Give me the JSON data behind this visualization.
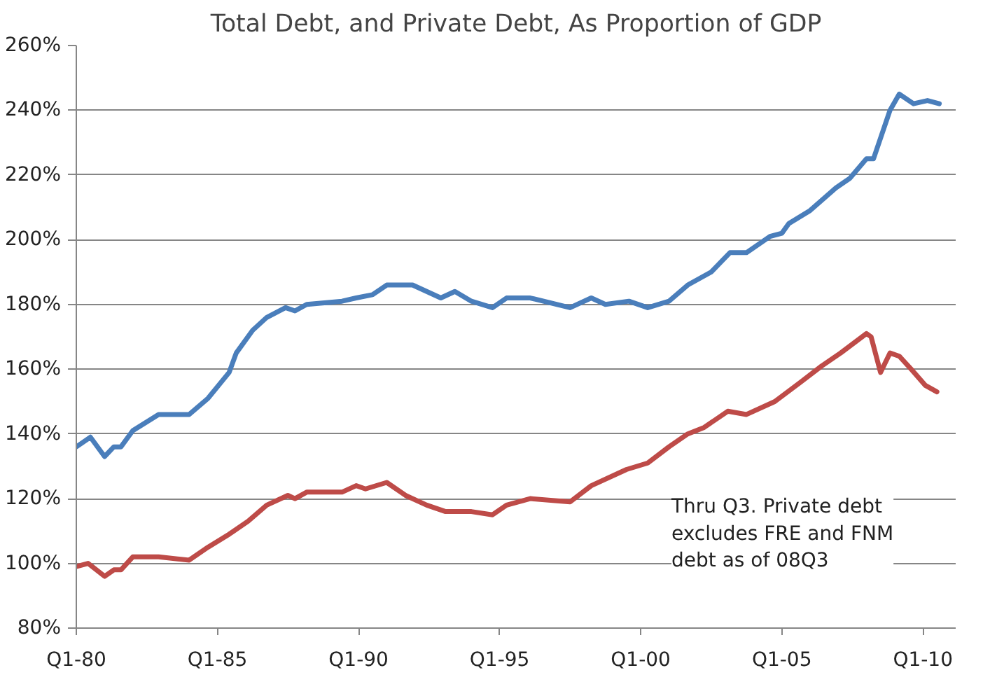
{
  "chart_data": {
    "type": "line",
    "title": "Total Debt, and Private Debt, As Proportion of GDP",
    "xlim": [
      "1980-01",
      "2011-03"
    ],
    "xticks": [
      {
        "value": "1980-01",
        "label": "Q1-80"
      },
      {
        "value": "1985-01",
        "label": "Q1-85"
      },
      {
        "value": "1990-01",
        "label": "Q1-90"
      },
      {
        "value": "1995-01",
        "label": "Q1-95"
      },
      {
        "value": "2000-01",
        "label": "Q1-00"
      },
      {
        "value": "2005-01",
        "label": "Q1-05"
      },
      {
        "value": "2010-01",
        "label": "Q1-10"
      }
    ],
    "ylim": [
      80,
      260
    ],
    "yticks": [
      {
        "value": 80,
        "label": "80%"
      },
      {
        "value": 100,
        "label": "100%"
      },
      {
        "value": 120,
        "label": "120%"
      },
      {
        "value": 140,
        "label": "140%"
      },
      {
        "value": 160,
        "label": "160%"
      },
      {
        "value": 180,
        "label": "180%"
      },
      {
        "value": 200,
        "label": "200%"
      },
      {
        "value": 220,
        "label": "220%"
      },
      {
        "value": 240,
        "label": "240%"
      },
      {
        "value": 260,
        "label": "260%"
      }
    ],
    "grid": "y",
    "line_style": "solid",
    "series": [
      {
        "color": "#4a7ebb",
        "x": [
          "1980-01",
          "1980-07",
          "1981-01",
          "1981-05",
          "1981-08",
          "1982-01",
          "1982-12",
          "1984-01",
          "1984-09",
          "1985-06",
          "1985-09",
          "1986-04",
          "1986-10",
          "1987-06",
          "1987-10",
          "1988-03",
          "1989-06",
          "1989-12",
          "1990-07",
          "1991-01",
          "1991-12",
          "1992-06",
          "1992-12",
          "1993-06",
          "1994-01",
          "1994-10",
          "1995-04",
          "1996-02",
          "1997-07",
          "1998-04",
          "1998-10",
          "1999-08",
          "2000-04",
          "2001-01",
          "2001-09",
          "2002-07",
          "2003-03",
          "2003-10",
          "2004-08",
          "2005-01",
          "2005-04",
          "2006-01",
          "2006-12",
          "2007-06",
          "2008-01",
          "2008-04",
          "2008-11",
          "2009-03",
          "2009-09",
          "2010-03",
          "2010-08"
        ],
        "values": [
          136,
          139,
          133,
          136,
          136,
          141,
          146,
          146,
          151,
          159,
          165,
          172,
          176,
          179,
          178,
          180,
          181,
          182,
          183,
          186,
          186,
          184,
          182,
          184,
          181,
          179,
          182,
          182,
          179,
          182,
          180,
          181,
          179,
          181,
          186,
          190,
          196,
          196,
          201,
          202,
          205,
          209,
          216,
          219,
          225,
          225,
          240,
          245,
          242,
          243,
          242
        ]
      },
      {
        "color": "#be4b48",
        "x": [
          "1980-01",
          "1980-06",
          "1981-01",
          "1981-05",
          "1981-08",
          "1982-01",
          "1982-12",
          "1984-01",
          "1984-09",
          "1985-06",
          "1986-02",
          "1986-10",
          "1987-07",
          "1987-10",
          "1988-03",
          "1989-06",
          "1989-12",
          "1990-04",
          "1991-01",
          "1991-09",
          "1992-06",
          "1993-02",
          "1994-01",
          "1994-10",
          "1995-04",
          "1996-02",
          "1997-07",
          "1998-04",
          "1999-07",
          "2000-04",
          "2001-01",
          "2001-09",
          "2002-04",
          "2003-02",
          "2003-10",
          "2004-10",
          "2005-09",
          "2006-06",
          "2007-02",
          "2008-01",
          "2008-03",
          "2008-07",
          "2008-11",
          "2009-03",
          "2009-08",
          "2010-02",
          "2010-07"
        ],
        "values": [
          99,
          100,
          96,
          98,
          98,
          102,
          102,
          101,
          105,
          109,
          113,
          118,
          121,
          120,
          122,
          122,
          124,
          123,
          125,
          121,
          118,
          116,
          116,
          115,
          118,
          120,
          119,
          124,
          129,
          131,
          136,
          140,
          142,
          147,
          146,
          150,
          156,
          161,
          165,
          171,
          170,
          159,
          165,
          164,
          160,
          155,
          153
        ]
      }
    ],
    "annotations": [
      "Thru Q3. Private debt\nexcludes FRE and FNM\ndebt as of 08Q3"
    ]
  }
}
